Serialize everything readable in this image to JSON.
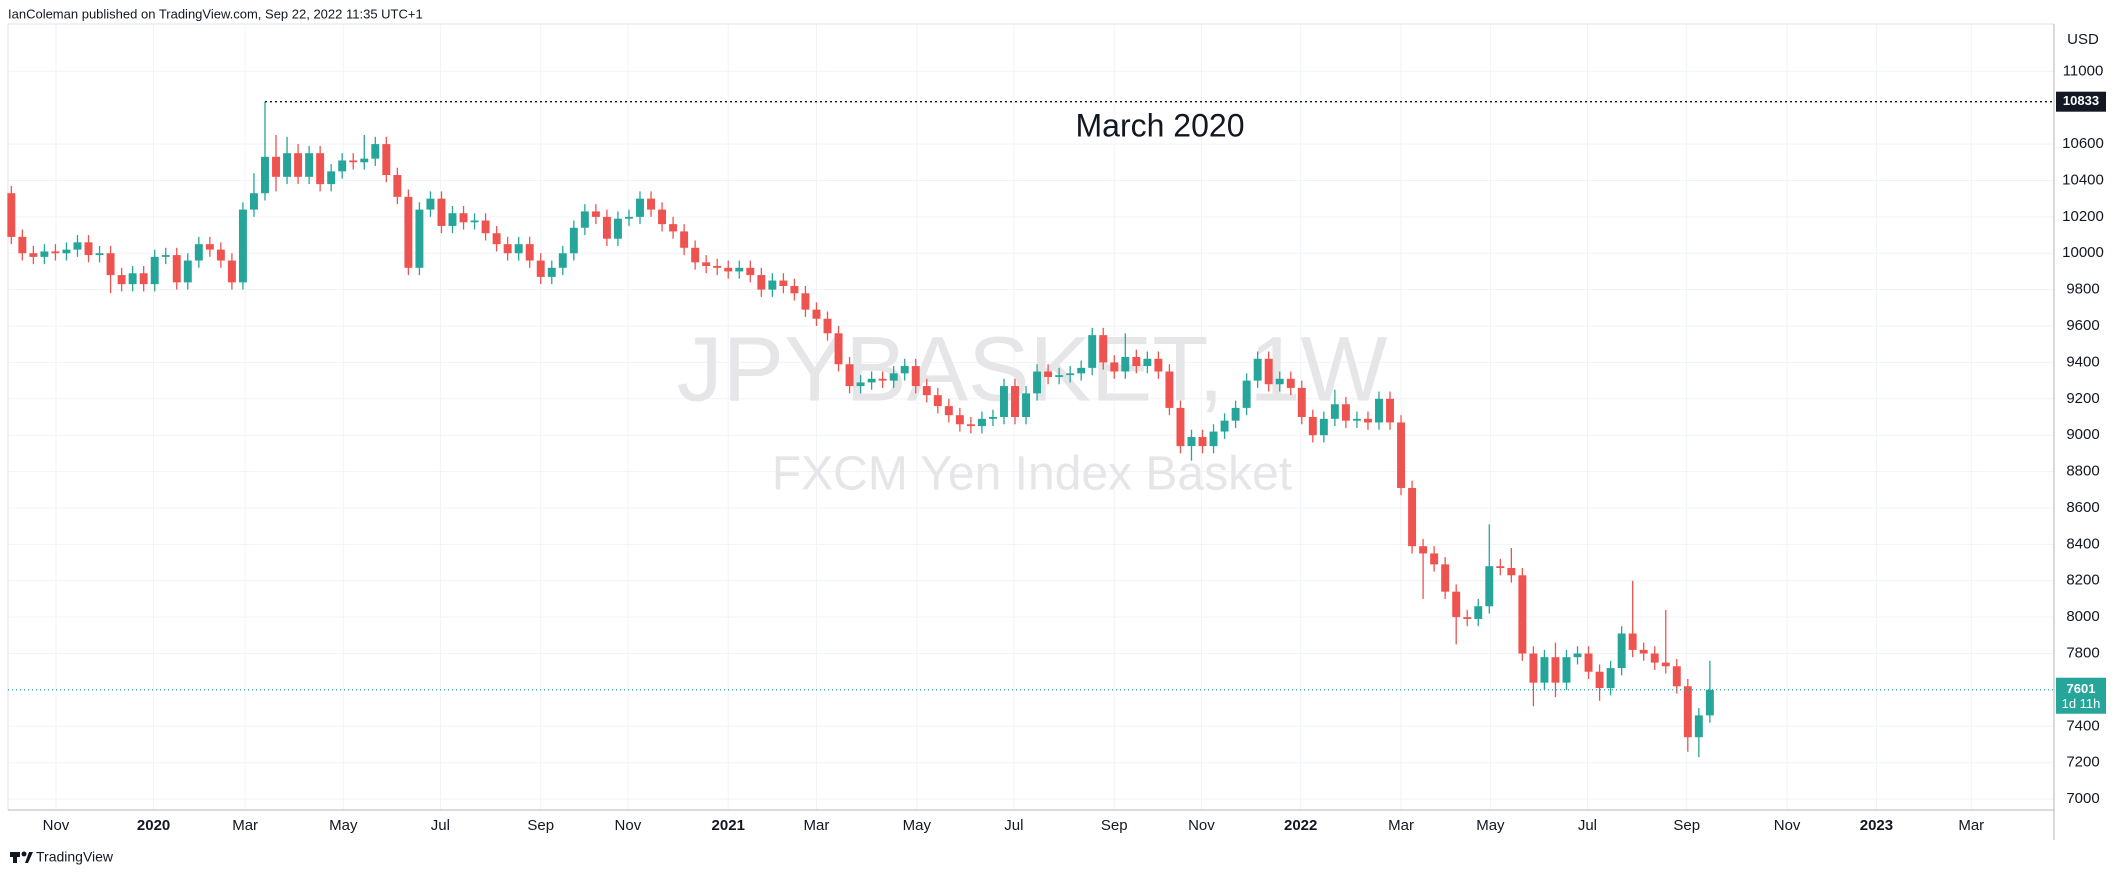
{
  "header": "IanColeman published on TradingView.com, Sep 22, 2022 11:35 UTC+1",
  "footer": "TradingView",
  "chart_data": {
    "type": "candlestick",
    "symbol": "JPYBASKET, 1W",
    "description": "FXCM Yen Index Basket",
    "annotation": "March 2020",
    "currency": "USD",
    "countdown": "1d 11h",
    "up_color": "#26a69a",
    "down_color": "#ef5350",
    "open": [
      10330,
      10090,
      10000,
      9980,
      10010,
      10000,
      10020,
      10060,
      9990,
      10000,
      9880,
      9830,
      9890,
      9830,
      9980,
      9990,
      9840,
      9960,
      10050,
      10020,
      9960,
      9840,
      10240,
      10330,
      10530,
      10420,
      10550,
      10420,
      10550,
      10380,
      10450,
      10510,
      10500,
      10520,
      10600,
      10430,
      10310,
      9920,
      10240,
      10300,
      10150,
      10220,
      10170,
      10180,
      10110,
      10050,
      10000,
      10050,
      9960,
      9870,
      9920,
      10000,
      10140,
      10230,
      10200,
      10080,
      10190,
      10200,
      10300,
      10240,
      10160,
      10120,
      10030,
      9950,
      9930,
      9920,
      9900,
      9920,
      9880,
      9800,
      9850,
      9820,
      9780,
      9690,
      9640,
      9560,
      9390,
      9270,
      9290,
      9310,
      9300,
      9340,
      9380,
      9270,
      9220,
      9160,
      9110,
      9060,
      9050,
      9090,
      9100,
      9270,
      9100,
      9230,
      9350,
      9320,
      9330,
      9340,
      9370,
      9550,
      9400,
      9350,
      9430,
      9380,
      9420,
      9350,
      9150,
      8940,
      8990,
      8940,
      9020,
      9080,
      9150,
      9300,
      9420,
      9280,
      9310,
      9260,
      9100,
      9000,
      9090,
      9170,
      9080,
      9090,
      9070,
      9200,
      9070,
      8710,
      8390,
      8350,
      8290,
      8140,
      8000,
      7990,
      8060,
      8280,
      8270,
      8230,
      7800,
      7640,
      7780,
      7640,
      7780,
      7800,
      7700,
      7610,
      7720,
      7910,
      7820,
      7800,
      7750,
      7730,
      7620,
      7340,
      7460
    ],
    "high": [
      10370,
      10130,
      10040,
      10050,
      10050,
      10060,
      10100,
      10100,
      10040,
      10040,
      9920,
      9930,
      9930,
      10020,
      10030,
      10030,
      10000,
      10090,
      10090,
      10060,
      10000,
      10280,
      10440,
      10833,
      10650,
      10640,
      10600,
      10590,
      10590,
      10490,
      10550,
      10550,
      10650,
      10640,
      10640,
      10470,
      10350,
      10280,
      10340,
      10340,
      10260,
      10260,
      10220,
      10220,
      10150,
      10090,
      10090,
      10090,
      10000,
      9960,
      10040,
      10180,
      10270,
      10270,
      10240,
      10230,
      10240,
      10340,
      10340,
      10280,
      10200,
      10160,
      10070,
      9990,
      9970,
      9960,
      9960,
      9960,
      9920,
      9890,
      9890,
      9860,
      9820,
      9730,
      9680,
      9600,
      9430,
      9330,
      9350,
      9350,
      9380,
      9420,
      9420,
      9310,
      9260,
      9200,
      9150,
      9100,
      9130,
      9140,
      9310,
      9310,
      9270,
      9390,
      9390,
      9370,
      9380,
      9410,
      9590,
      9590,
      9440,
      9560,
      9470,
      9460,
      9460,
      9390,
      9190,
      9030,
      9030,
      9060,
      9120,
      9190,
      9340,
      9460,
      9460,
      9350,
      9350,
      9300,
      9140,
      9130,
      9250,
      9210,
      9130,
      9130,
      9240,
      9240,
      9110,
      8750,
      8430,
      8390,
      8330,
      8180,
      8040,
      8100,
      8510,
      8320,
      8380,
      8270,
      7840,
      7820,
      7860,
      7820,
      7840,
      7840,
      7740,
      7760,
      7950,
      8200,
      7860,
      7840,
      8040,
      7770,
      7660,
      7500,
      7760
    ],
    "low": [
      10050,
      9960,
      9940,
      9940,
      9960,
      9960,
      9980,
      9950,
      9950,
      9780,
      9790,
      9790,
      9790,
      9790,
      9940,
      9800,
      9800,
      9920,
      9980,
      9920,
      9800,
      9800,
      10200,
      10290,
      10340,
      10380,
      10380,
      10380,
      10340,
      10340,
      10410,
      10460,
      10460,
      10480,
      10390,
      10270,
      9880,
      9880,
      10200,
      10110,
      10110,
      10130,
      10130,
      10070,
      10010,
      9960,
      9960,
      9920,
      9830,
      9830,
      9880,
      9960,
      10100,
      10160,
      10040,
      10040,
      10150,
      10160,
      10200,
      10120,
      10080,
      9990,
      9910,
      9890,
      9880,
      9860,
      9860,
      9840,
      9760,
      9760,
      9780,
      9740,
      9650,
      9600,
      9520,
      9350,
      9230,
      9230,
      9250,
      9260,
      9260,
      9300,
      9230,
      9180,
      9120,
      9070,
      9020,
      9010,
      9010,
      9050,
      9060,
      9060,
      9060,
      9190,
      9280,
      9280,
      9290,
      9300,
      9330,
      9360,
      9310,
      9310,
      9340,
      9340,
      9310,
      9110,
      8900,
      8860,
      8900,
      8900,
      8980,
      9040,
      9110,
      9260,
      9240,
      9240,
      9220,
      9060,
      8960,
      8960,
      9050,
      9040,
      9040,
      9030,
      9030,
      9030,
      8670,
      8350,
      8100,
      8250,
      8100,
      7850,
      7950,
      7950,
      8020,
      8230,
      8190,
      7760,
      7510,
      7600,
      7560,
      7600,
      7740,
      7660,
      7540,
      7570,
      7680,
      7780,
      7760,
      7710,
      7690,
      7580,
      7260,
      7230,
      7420
    ],
    "close": [
      10090,
      10000,
      9980,
      10010,
      10000,
      10020,
      10060,
      9990,
      10000,
      9880,
      9830,
      9890,
      9830,
      9980,
      9990,
      9840,
      9960,
      10050,
      10020,
      9960,
      9840,
      10240,
      10330,
      10530,
      10420,
      10550,
      10420,
      10550,
      10380,
      10450,
      10510,
      10500,
      10520,
      10600,
      10430,
      10310,
      9920,
      10240,
      10300,
      10150,
      10220,
      10170,
      10180,
      10110,
      10050,
      10000,
      10050,
      9960,
      9870,
      9920,
      10000,
      10140,
      10230,
      10200,
      10080,
      10190,
      10200,
      10300,
      10240,
      10160,
      10120,
      10030,
      9950,
      9930,
      9920,
      9900,
      9920,
      9880,
      9800,
      9850,
      9820,
      9780,
      9690,
      9640,
      9560,
      9390,
      9270,
      9290,
      9310,
      9300,
      9340,
      9380,
      9270,
      9220,
      9160,
      9110,
      9060,
      9050,
      9090,
      9100,
      9270,
      9100,
      9230,
      9350,
      9320,
      9330,
      9340,
      9370,
      9550,
      9400,
      9350,
      9430,
      9380,
      9420,
      9350,
      9150,
      8940,
      8990,
      8940,
      9020,
      9080,
      9150,
      9300,
      9420,
      9280,
      9310,
      9260,
      9100,
      9000,
      9090,
      9170,
      9080,
      9090,
      9070,
      9200,
      9070,
      8710,
      8390,
      8350,
      8290,
      8140,
      8000,
      7990,
      8060,
      8280,
      8270,
      8230,
      7800,
      7640,
      7780,
      7640,
      7780,
      7800,
      7700,
      7610,
      7720,
      7910,
      7820,
      7800,
      7750,
      7730,
      7620,
      7340,
      7460,
      7601
    ],
    "xlim": [
      -0.3,
      185.2
    ],
    "xticks": [
      {
        "value": 4.05,
        "label": "Nov"
      },
      {
        "value": 12.9,
        "label": "2020"
      },
      {
        "value": 21.2,
        "label": "Mar"
      },
      {
        "value": 30.1,
        "label": "May"
      },
      {
        "value": 38.9,
        "label": "Jul"
      },
      {
        "value": 48.0,
        "label": "Sep"
      },
      {
        "value": 55.9,
        "label": "Nov"
      },
      {
        "value": 65.0,
        "label": "2021"
      },
      {
        "value": 73.0,
        "label": "Mar"
      },
      {
        "value": 82.1,
        "label": "May"
      },
      {
        "value": 90.9,
        "label": "Jul"
      },
      {
        "value": 100.0,
        "label": "Sep"
      },
      {
        "value": 107.9,
        "label": "Nov"
      },
      {
        "value": 116.9,
        "label": "2022"
      },
      {
        "value": 126.0,
        "label": "Mar"
      },
      {
        "value": 134.1,
        "label": "May"
      },
      {
        "value": 142.9,
        "label": "Jul"
      },
      {
        "value": 151.9,
        "label": "Sep"
      },
      {
        "value": 161.0,
        "label": "Nov"
      },
      {
        "value": 169.1,
        "label": "2023"
      },
      {
        "value": 177.7,
        "label": "Mar"
      }
    ],
    "ylim": [
      6940,
      11260
    ],
    "yticks": [
      7000,
      7200,
      7400,
      7800,
      8000,
      8200,
      8400,
      8600,
      8800,
      9000,
      9200,
      9400,
      9600,
      9800,
      10000,
      10200,
      10400,
      10600,
      11000
    ],
    "grid": true
  }
}
